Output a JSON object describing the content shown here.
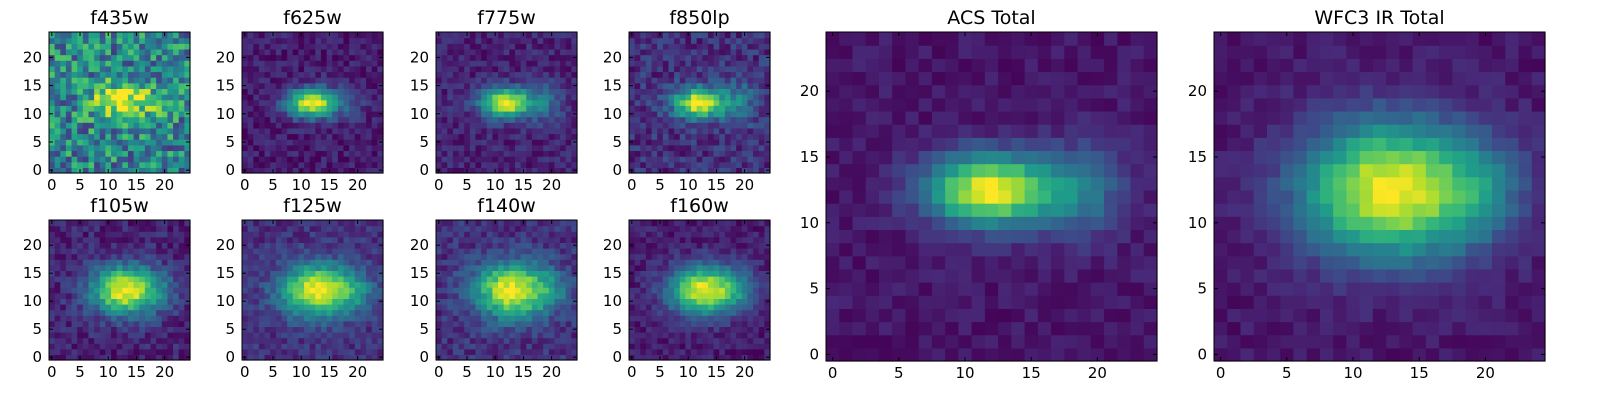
{
  "chart_data": [
    {
      "type": "heatmap",
      "title": "f435w",
      "peak": [
        13,
        12.5
      ],
      "sigma": [
        4.0,
        2.2
      ],
      "noise": 0.28,
      "base": 0.45,
      "halo": 0.0,
      "seed": 11,
      "xticks": [
        0,
        5,
        10,
        15,
        20
      ],
      "yticks": [
        0,
        5,
        10,
        15,
        20
      ],
      "xlim": [
        0,
        25
      ],
      "ylim": [
        0,
        25
      ]
    },
    {
      "type": "heatmap",
      "title": "f625w",
      "peak": [
        12,
        12
      ],
      "sigma": [
        3.2,
        1.8
      ],
      "noise": 0.09,
      "base": 0.08,
      "halo": 0.1,
      "seed": 23,
      "xticks": [
        0,
        5,
        10,
        15,
        20
      ],
      "yticks": [
        0,
        5,
        10,
        15,
        20
      ],
      "xlim": [
        0,
        25
      ],
      "ylim": [
        0,
        25
      ]
    },
    {
      "type": "heatmap",
      "title": "f775w",
      "peak": [
        12,
        12
      ],
      "sigma": [
        3.2,
        1.8
      ],
      "noise": 0.09,
      "base": 0.1,
      "halo": 0.25,
      "seed": 37,
      "xticks": [
        0,
        5,
        10,
        15,
        20
      ],
      "yticks": [
        0,
        5,
        10,
        15,
        20
      ],
      "xlim": [
        0,
        25
      ],
      "ylim": [
        0,
        25
      ]
    },
    {
      "type": "heatmap",
      "title": "f850lp",
      "peak": [
        12,
        12
      ],
      "sigma": [
        3.2,
        1.9
      ],
      "noise": 0.12,
      "base": 0.14,
      "halo": 0.3,
      "seed": 41,
      "xticks": [
        0,
        5,
        10,
        15,
        20
      ],
      "yticks": [
        0,
        5,
        10,
        15,
        20
      ],
      "xlim": [
        0,
        25
      ],
      "ylim": [
        0,
        25
      ]
    },
    {
      "type": "heatmap",
      "title": "f105w",
      "peak": [
        13,
        12
      ],
      "sigma": [
        4.2,
        3.0
      ],
      "noise": 0.1,
      "base": 0.1,
      "halo": 0.15,
      "seed": 53,
      "xticks": [
        0,
        5,
        10,
        15,
        20
      ],
      "yticks": [
        0,
        5,
        10,
        15,
        20
      ],
      "xlim": [
        0,
        25
      ],
      "ylim": [
        0,
        25
      ]
    },
    {
      "type": "heatmap",
      "title": "f125w",
      "peak": [
        13,
        12
      ],
      "sigma": [
        4.6,
        3.2
      ],
      "noise": 0.09,
      "base": 0.14,
      "halo": 0.2,
      "seed": 61,
      "xticks": [
        0,
        5,
        10,
        15,
        20
      ],
      "yticks": [
        0,
        5,
        10,
        15,
        20
      ],
      "xlim": [
        0,
        25
      ],
      "ylim": [
        0,
        25
      ]
    },
    {
      "type": "heatmap",
      "title": "f140w",
      "peak": [
        13,
        12
      ],
      "sigma": [
        4.6,
        3.4
      ],
      "noise": 0.1,
      "base": 0.14,
      "halo": 0.2,
      "seed": 71,
      "xticks": [
        0,
        5,
        10,
        15,
        20
      ],
      "yticks": [
        0,
        5,
        10,
        15,
        20
      ],
      "xlim": [
        0,
        25
      ],
      "ylim": [
        0,
        25
      ]
    },
    {
      "type": "heatmap",
      "title": "f160w",
      "peak": [
        13,
        12
      ],
      "sigma": [
        4.4,
        3.0
      ],
      "noise": 0.08,
      "base": 0.08,
      "halo": 0.15,
      "seed": 83,
      "xticks": [
        0,
        5,
        10,
        15,
        20
      ],
      "yticks": [
        0,
        5,
        10,
        15,
        20
      ],
      "xlim": [
        0,
        25
      ],
      "ylim": [
        0,
        25
      ]
    },
    {
      "type": "heatmap",
      "title": "ACS Total",
      "peak": [
        12,
        12.5
      ],
      "sigma": [
        3.4,
        1.9
      ],
      "noise": 0.05,
      "base": 0.06,
      "halo": 0.3,
      "seed": 97,
      "xticks": [
        0,
        5,
        10,
        15,
        20
      ],
      "yticks": [
        0,
        5,
        10,
        15,
        20
      ],
      "xlim": [
        0,
        25
      ],
      "ylim": [
        0,
        25
      ]
    },
    {
      "type": "heatmap",
      "title": "WFC3 IR Total",
      "peak": [
        13,
        12.5
      ],
      "sigma": [
        4.8,
        3.6
      ],
      "noise": 0.05,
      "base": 0.06,
      "halo": 0.2,
      "seed": 101,
      "xticks": [
        0,
        5,
        10,
        15,
        20
      ],
      "yticks": [
        0,
        5,
        10,
        15,
        20
      ],
      "xlim": [
        0,
        25
      ],
      "ylim": [
        0,
        25
      ]
    }
  ],
  "colormap": [
    "#440154",
    "#482878",
    "#3e4989",
    "#31688e",
    "#26828e",
    "#1f9e89",
    "#35b779",
    "#6ece58",
    "#b5de2b",
    "#fde725"
  ]
}
